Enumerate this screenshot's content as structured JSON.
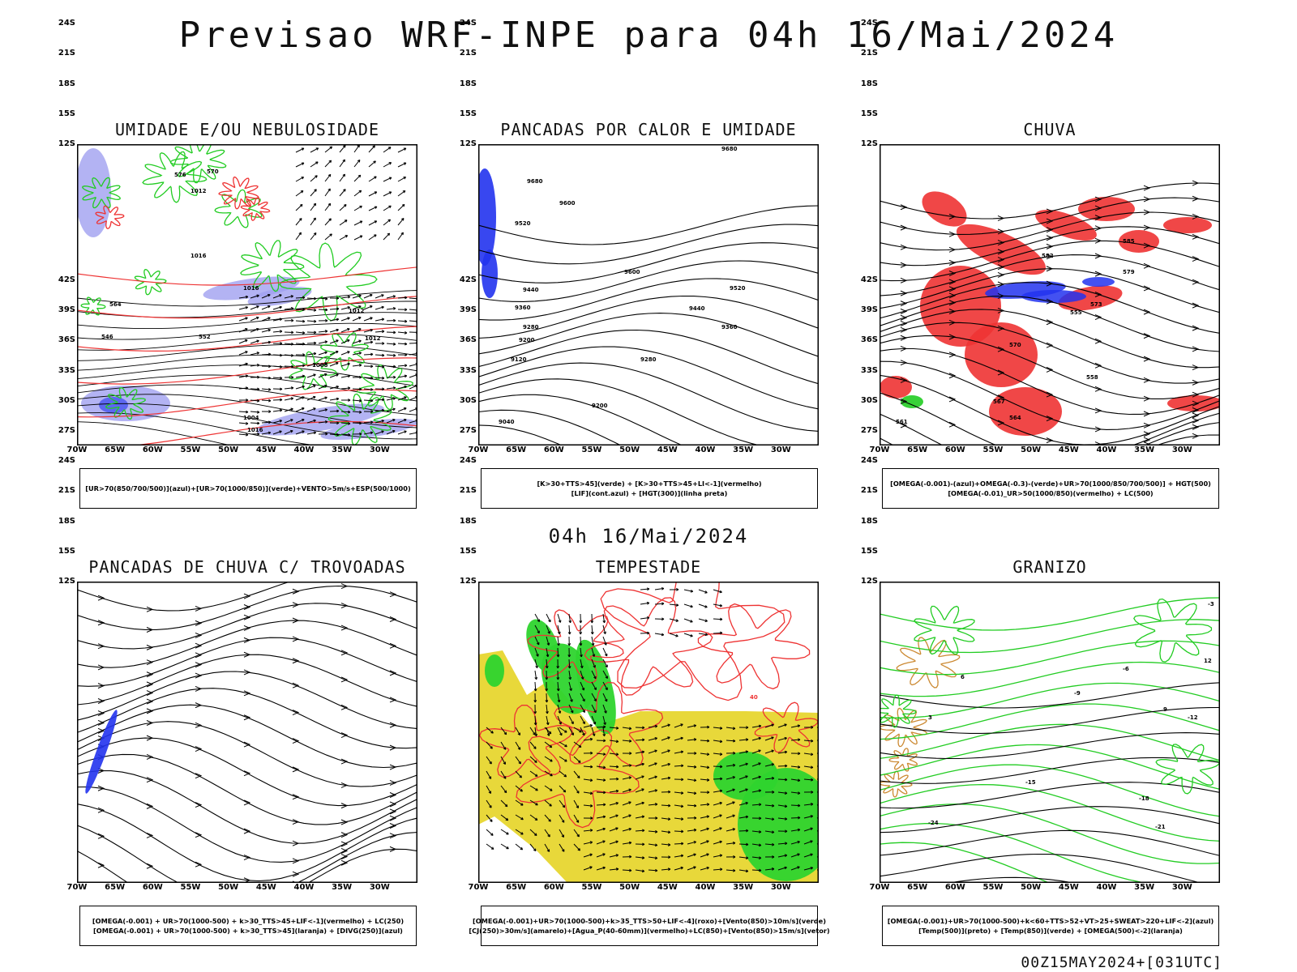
{
  "title": "Previsao WRF-INPE  para 04h 16/Mai/2024",
  "mid_title": "04h 16/Mai/2024",
  "footer": "00Z15MAY2024+[031UTC]",
  "axes": {
    "lat_labels": [
      "12S",
      "15S",
      "18S",
      "21S",
      "24S",
      "27S",
      "30S",
      "33S",
      "36S",
      "39S",
      "42S"
    ],
    "lon_labels": [
      "70W",
      "65W",
      "60W",
      "55W",
      "50W",
      "45W",
      "40W",
      "35W",
      "30W"
    ]
  },
  "colors": {
    "green": "#22cc22",
    "red": "#ee3333",
    "blue": "#2233ee",
    "lavender": "#a0a0f0",
    "yellow": "#e8d83a",
    "orange": "#cc8a33",
    "black": "#000000"
  },
  "panels": [
    {
      "title": "UMIDADE E/OU NEBULOSIDADE",
      "legend": [
        "[UR>70(850/700/500)](azul)+[UR>70(1000/850)](verde)+VENTO>5m/s+ESP(500/1000)"
      ],
      "contour_labels": [
        "1012",
        "1016",
        "1016",
        "1012",
        "1008",
        "1004",
        "1012",
        "1016",
        "570",
        "576",
        "564",
        "552",
        "546"
      ]
    },
    {
      "title": "PANCADAS POR CALOR E UMIDADE",
      "legend": [
        "[K>30+TTS>45](verde) + [K>30+TTS>45+LI<-1](vermelho)",
        "[LIF](cont.azul) + [HGT(300)](linha preta)"
      ],
      "contour_labels": [
        "9680",
        "9680",
        "9600",
        "9520",
        "9440",
        "9360",
        "9280",
        "9200",
        "9120",
        "9040",
        "9600",
        "9520",
        "9440",
        "9360",
        "9280",
        "9200"
      ]
    },
    {
      "title": "CHUVA",
      "legend": [
        "[OMEGA(-0.001)-(azul)+OMEGA(-0.3)-(verde)+UR>70(1000/850/700/500)] + HGT(500)",
        "[OMEGA(-0.01)_UR>50(1000/850)(vermelho) + LC(500)"
      ],
      "contour_labels": [
        "582",
        "585",
        "579",
        "573",
        "570",
        "567",
        "564",
        "561",
        "558",
        "555"
      ]
    },
    {
      "title": "PANCADAS DE CHUVA C/ TROVOADAS",
      "legend": [
        "[OMEGA(-0.001) + UR>70(1000-500) + k>30_TTS>45+LIF<-1](vermelho) + LC(250)",
        "[OMEGA(-0.001) + UR>70(1000-500) + k>30_TTS>45](laranja) + [DIVG(250)](azul)"
      ],
      "contour_labels": []
    },
    {
      "title": "TEMPESTADE",
      "legend": [
        "[OMEGA(-0.001)+UR>70(1000-500)+k>35_TTS>50+LIF<-4](roxo)+[Vento(850)>10m/s](verde)",
        "[CJ(250)>30m/s](amarelo)+[Agua_P(40-60mm)](vermelho)+LC(850)+[Vento(850)>15m/s](vetor)"
      ],
      "contour_labels": [
        "40"
      ]
    },
    {
      "title": "GRANIZO",
      "legend": [
        "[OMEGA(-0.001)+UR>70(1000-500)+k<60+TTS>52+VT>25+SWEAT>220+LIF<-2](azul)",
        "[Temp(500)](preto) + [Temp(850)](verde) + [OMEGA(500)<-2](laranja)"
      ],
      "contour_labels": [
        "-3",
        "-6",
        "-9",
        "-12",
        "-15",
        "-18",
        "-21",
        "-24",
        "12",
        "9",
        "6",
        "3"
      ]
    }
  ]
}
